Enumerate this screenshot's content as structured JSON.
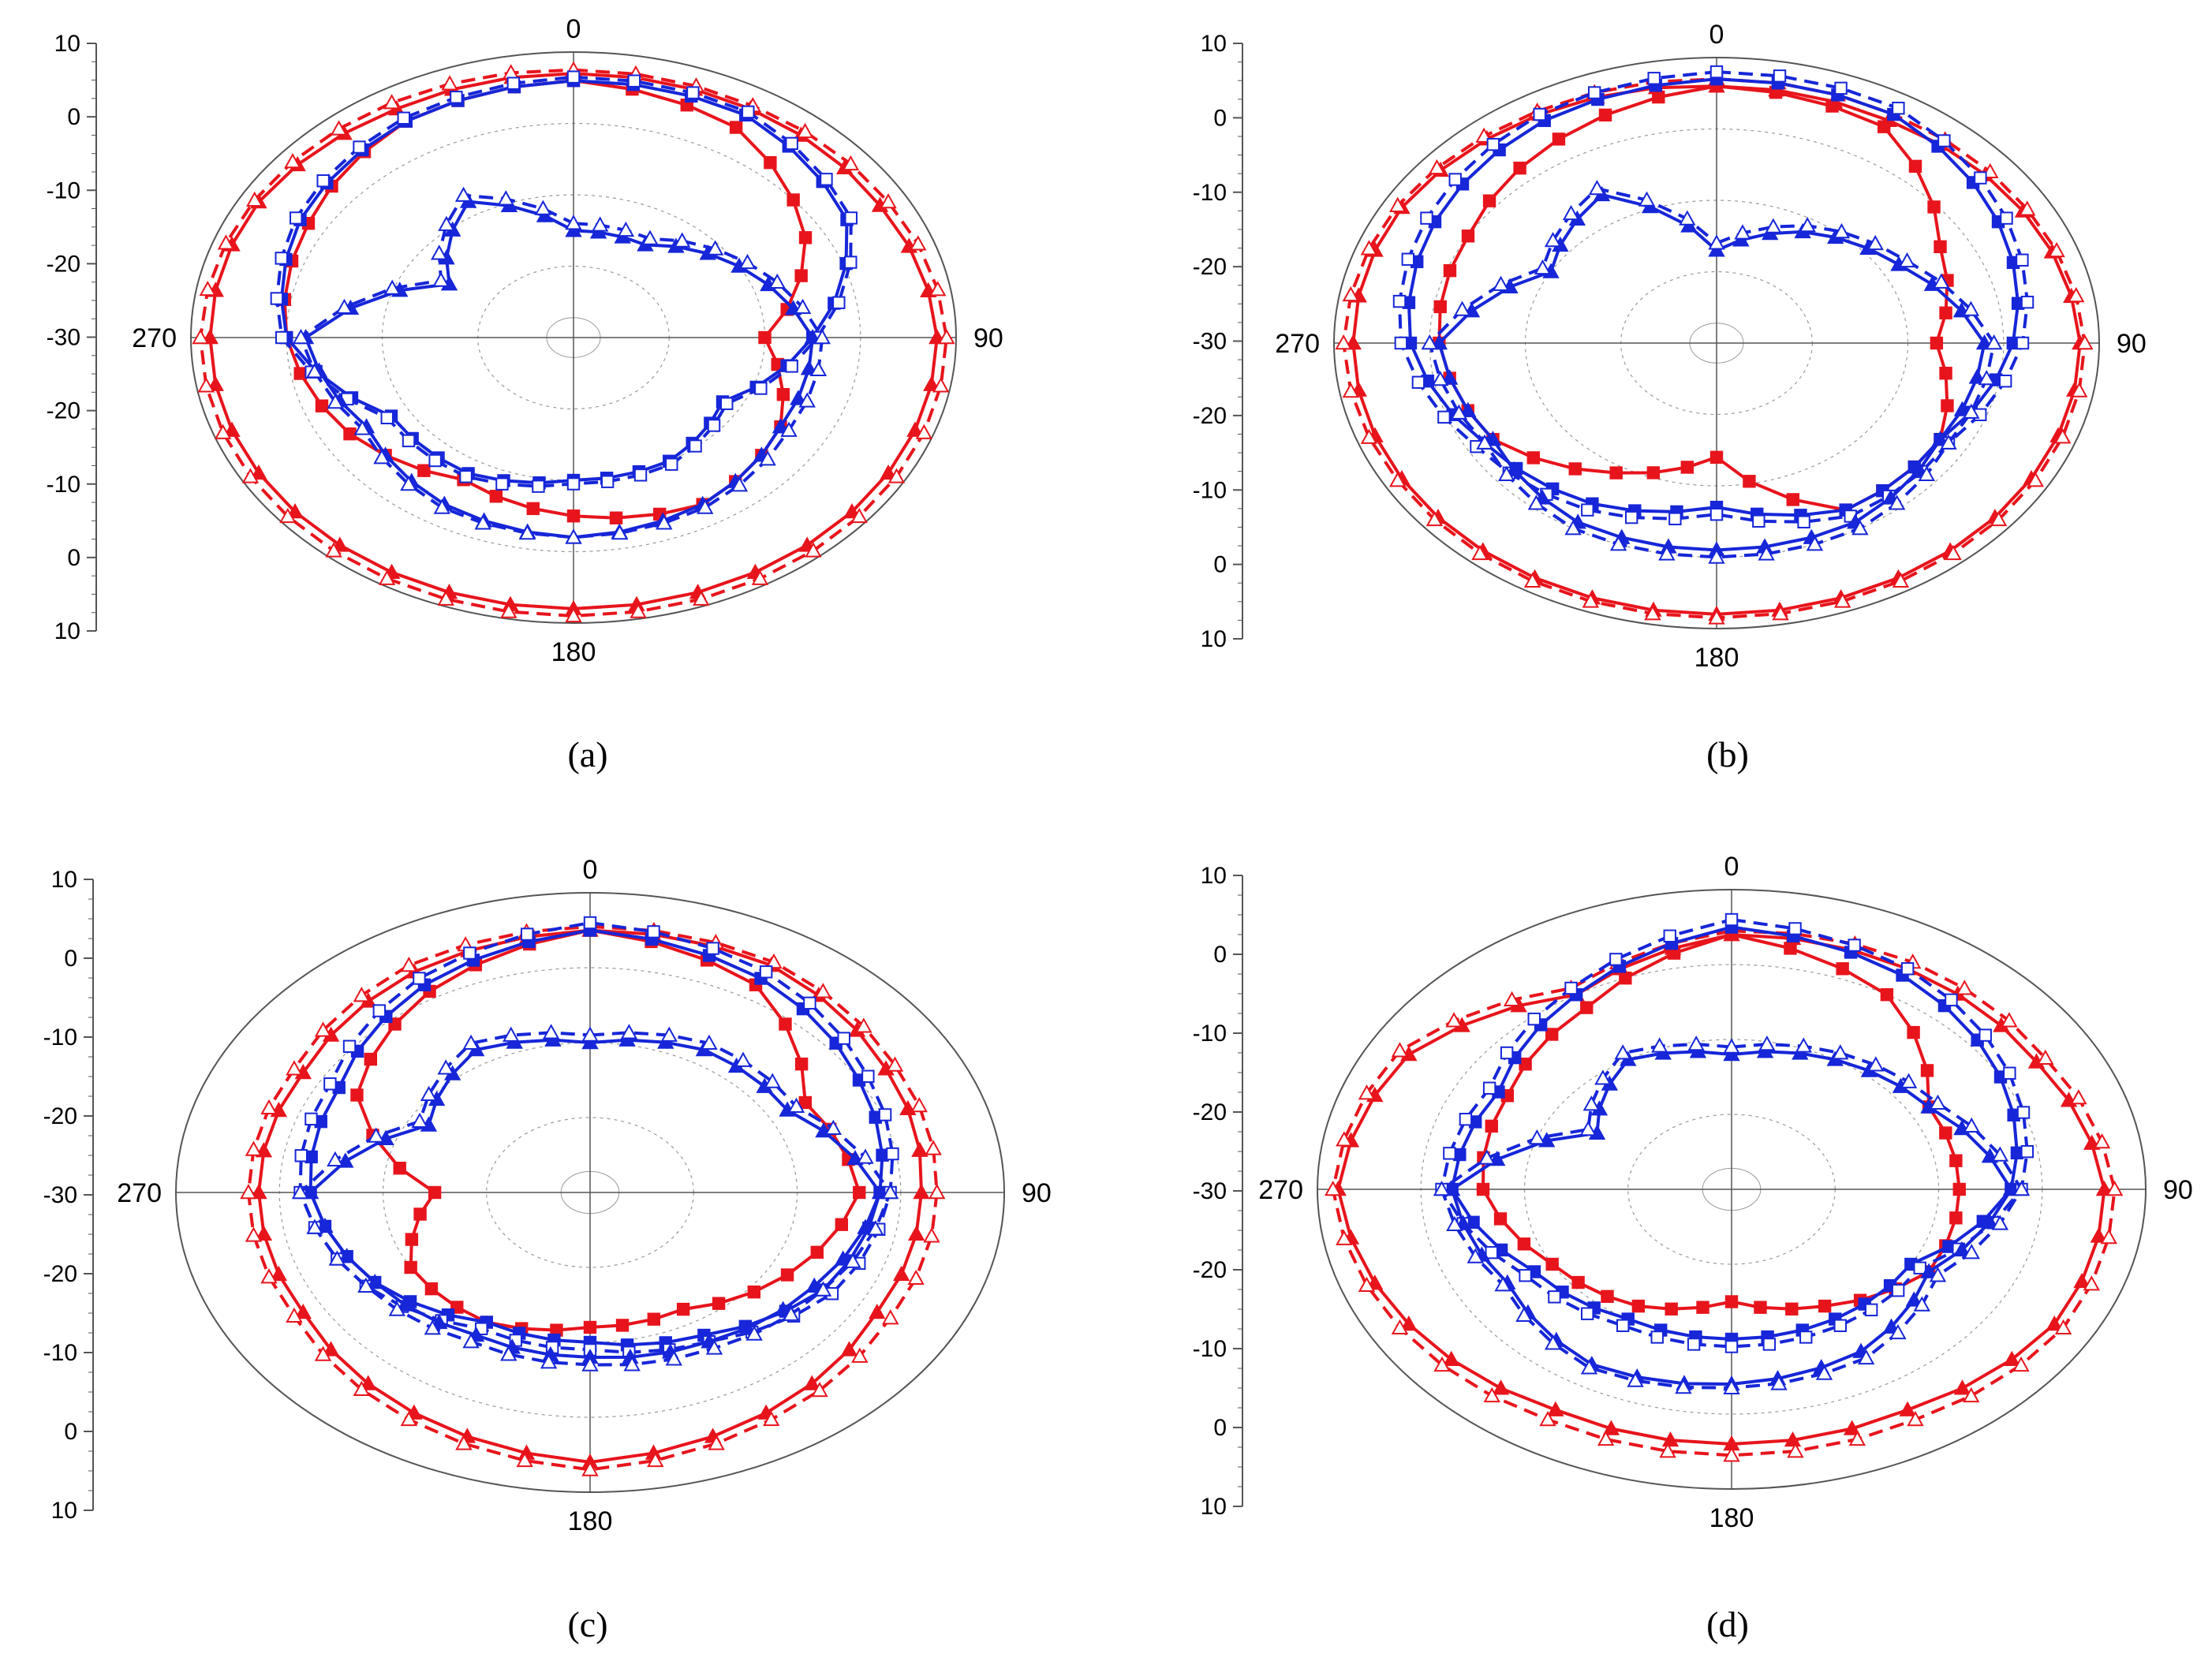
{
  "figure": {
    "captions": [
      "(a)",
      "(b)",
      "(c)",
      "(d)"
    ]
  },
  "colors": {
    "red": "#e8141c",
    "blue": "#1626d8",
    "grid": "#9a9a9a",
    "axis": "#555555"
  },
  "chart_data": [
    {
      "type": "polar-line",
      "caption": "(a)",
      "angle_labels": [
        "0",
        "90",
        "180",
        "270"
      ],
      "radial_tick_labels": [
        "10",
        "0",
        "-10",
        "-20",
        "-30",
        "-20",
        "-10",
        "0",
        "10"
      ],
      "radial_range": [
        -30,
        10
      ],
      "grid": true,
      "series": [
        {
          "color": "red",
          "style": "solid",
          "marker": "filled-triangle",
          "angles": [
            0,
            30,
            60,
            90,
            120,
            150,
            180,
            210,
            240,
            270,
            300,
            330
          ],
          "values": [
            7,
            7,
            7,
            8,
            8,
            8,
            8,
            8,
            8,
            8,
            8,
            7
          ]
        },
        {
          "color": "red",
          "style": "dashed",
          "marker": "open-triangle",
          "angles": [
            0,
            30,
            60,
            90,
            120,
            150,
            180,
            210,
            240,
            270,
            300,
            330
          ],
          "values": [
            7.5,
            7.5,
            8,
            9,
            9,
            9,
            9,
            9,
            9,
            9,
            8.5,
            8
          ]
        },
        {
          "color": "red",
          "style": "solid",
          "marker": "filled-square",
          "angles": [
            0,
            30,
            60,
            90,
            120,
            150,
            180,
            210,
            240,
            270,
            300,
            330
          ],
          "values": [
            6,
            4,
            -2,
            -10,
            -5,
            -3,
            -5,
            -7,
            -3,
            0,
            2,
            5
          ]
        },
        {
          "color": "blue",
          "style": "solid",
          "marker": "filled-square",
          "angles": [
            0,
            30,
            60,
            90,
            120,
            150,
            180,
            210,
            240,
            270,
            300,
            330
          ],
          "values": [
            6,
            6,
            3,
            -5,
            -12,
            -10,
            -10,
            -8,
            -8,
            0,
            3,
            5
          ]
        },
        {
          "color": "blue",
          "style": "dashed",
          "marker": "open-square",
          "angles": [
            0,
            30,
            60,
            90,
            120,
            150,
            180,
            210,
            240,
            270,
            300,
            330
          ],
          "values": [
            6.5,
            6.5,
            3.5,
            -4.5,
            -11.5,
            -9.5,
            -9.5,
            -7.5,
            -7.5,
            0.5,
            3.5,
            5.5
          ]
        },
        {
          "color": "blue",
          "style": "solid",
          "marker": "filled-triangle",
          "angles": [
            0,
            30,
            60,
            90,
            120,
            150,
            180,
            210,
            240,
            270,
            300,
            330
          ],
          "values": [
            -15,
            -15,
            -10,
            -5,
            -5,
            -3,
            -2,
            -3,
            -5,
            -2,
            -15,
            -8
          ]
        },
        {
          "color": "blue",
          "style": "dashed",
          "marker": "open-triangle",
          "angles": [
            0,
            30,
            60,
            90,
            120,
            150,
            180,
            210,
            240,
            270,
            300,
            330
          ],
          "values": [
            -14,
            -14,
            -9,
            -4,
            -4,
            -2.5,
            -2,
            -2.5,
            -4.5,
            -1.5,
            -14,
            -7
          ]
        }
      ]
    },
    {
      "type": "polar-line",
      "caption": "(b)",
      "angle_labels": [
        "0",
        "90",
        "180",
        "270"
      ],
      "radial_tick_labels": [
        "10",
        "0",
        "-10",
        "-20",
        "-30",
        "-20",
        "-10",
        "0",
        "10"
      ],
      "radial_range": [
        -30,
        10
      ],
      "grid": true,
      "series": [
        {
          "color": "red",
          "style": "solid",
          "marker": "filled-triangle",
          "angles": [
            0,
            30,
            60,
            90,
            120,
            150,
            180,
            210,
            240,
            270,
            300,
            330
          ],
          "values": [
            6,
            6,
            7,
            8,
            8,
            8,
            8,
            8,
            8,
            8,
            8,
            7
          ]
        },
        {
          "color": "red",
          "style": "dashed",
          "marker": "open-triangle",
          "angles": [
            0,
            30,
            60,
            90,
            120,
            150,
            180,
            210,
            240,
            270,
            300,
            330
          ],
          "values": [
            7,
            7,
            7.5,
            8.5,
            8.5,
            8.5,
            8.5,
            8.5,
            8.5,
            9,
            8.5,
            7.5
          ]
        },
        {
          "color": "red",
          "style": "solid",
          "marker": "filled-square",
          "angles": [
            0,
            30,
            60,
            90,
            120,
            150,
            180,
            210,
            240,
            270,
            300,
            330
          ],
          "values": [
            6,
            5,
            -3,
            -7,
            -3,
            -3,
            -14,
            -9,
            -3,
            -1,
            0,
            3
          ]
        },
        {
          "color": "blue",
          "style": "solid",
          "marker": "filled-square",
          "angles": [
            0,
            30,
            60,
            90,
            120,
            150,
            180,
            210,
            240,
            270,
            300,
            330
          ],
          "values": [
            7,
            7,
            4,
            1,
            -3,
            -3,
            -7,
            -4,
            -2,
            2,
            4,
            6
          ]
        },
        {
          "color": "blue",
          "style": "dashed",
          "marker": "open-square",
          "angles": [
            0,
            30,
            60,
            90,
            120,
            150,
            180,
            210,
            240,
            270,
            300,
            330
          ],
          "values": [
            8,
            8,
            5,
            2,
            -2,
            -2,
            -6,
            -3,
            -1,
            3,
            5,
            7
          ]
        },
        {
          "color": "blue",
          "style": "solid",
          "marker": "filled-triangle",
          "angles": [
            0,
            30,
            60,
            90,
            120,
            150,
            180,
            210,
            240,
            270,
            300,
            330
          ],
          "values": [
            -17,
            -12,
            -8,
            -2,
            -3,
            -1,
            -1,
            -1,
            -3,
            -1,
            -10,
            -6
          ]
        },
        {
          "color": "blue",
          "style": "dashed",
          "marker": "open-triangle",
          "angles": [
            0,
            30,
            60,
            90,
            120,
            150,
            180,
            210,
            240,
            270,
            300,
            330
          ],
          "values": [
            -16,
            -11,
            -7,
            -1,
            -2,
            0,
            0,
            0,
            -2,
            0,
            -9,
            -5
          ]
        }
      ]
    },
    {
      "type": "polar-line",
      "caption": "(c)",
      "angle_labels": [
        "0",
        "90",
        "180",
        "270"
      ],
      "radial_tick_labels": [
        "10",
        "0",
        "-10",
        "-20",
        "-30",
        "-20",
        "-10",
        "0",
        "10"
      ],
      "radial_range": [
        -30,
        10
      ],
      "grid": true,
      "series": [
        {
          "color": "red",
          "style": "solid",
          "marker": "filled-triangle",
          "angles": [
            0,
            30,
            60,
            90,
            120,
            150,
            180,
            210,
            240,
            270,
            300,
            330
          ],
          "values": [
            5,
            5,
            3,
            2,
            2,
            4,
            6,
            4,
            2,
            2,
            2,
            4
          ]
        },
        {
          "color": "red",
          "style": "dashed",
          "marker": "open-triangle",
          "angles": [
            0,
            30,
            60,
            90,
            120,
            150,
            180,
            210,
            240,
            270,
            300,
            330
          ],
          "values": [
            5.5,
            5.5,
            4,
            3.5,
            3.5,
            5,
            7,
            5,
            3,
            3,
            3,
            5
          ]
        },
        {
          "color": "red",
          "style": "solid",
          "marker": "filled-square",
          "angles": [
            0,
            30,
            60,
            90,
            120,
            150,
            180,
            210,
            240,
            270,
            300,
            330
          ],
          "values": [
            5,
            2,
            -6,
            -4,
            -8,
            -12,
            -12,
            -10,
            -10,
            -15,
            -4,
            1
          ]
        },
        {
          "color": "blue",
          "style": "solid",
          "marker": "filled-square",
          "angles": [
            0,
            30,
            60,
            90,
            120,
            150,
            180,
            210,
            240,
            270,
            300,
            330
          ],
          "values": [
            5,
            3,
            0,
            -2,
            -4,
            -8,
            -10,
            -10,
            -6,
            -3,
            -2,
            2
          ]
        },
        {
          "color": "blue",
          "style": "dashed",
          "marker": "open-square",
          "angles": [
            0,
            30,
            60,
            90,
            120,
            150,
            180,
            210,
            240,
            270,
            300,
            330
          ],
          "values": [
            6,
            4,
            1,
            -1,
            -3,
            -7,
            -9,
            -9,
            -5,
            -2,
            -1,
            3
          ]
        },
        {
          "color": "blue",
          "style": "solid",
          "marker": "filled-triangle",
          "angles": [
            0,
            30,
            60,
            90,
            120,
            150,
            180,
            210,
            240,
            270,
            300,
            330
          ],
          "values": [
            -10,
            -8,
            -8,
            -2,
            -5,
            -7,
            -8,
            -8,
            -6,
            -3,
            -12,
            -8
          ]
        },
        {
          "color": "blue",
          "style": "dashed",
          "marker": "open-triangle",
          "angles": [
            0,
            30,
            60,
            90,
            120,
            150,
            180,
            210,
            240,
            270,
            300,
            330
          ],
          "values": [
            -9,
            -7,
            -7,
            -1,
            -4,
            -6,
            -7,
            -7,
            -5,
            -2,
            -11,
            -7
          ]
        }
      ]
    },
    {
      "type": "polar-line",
      "caption": "(d)",
      "angle_labels": [
        "0",
        "90",
        "180",
        "270"
      ],
      "radial_tick_labels": [
        "10",
        "0",
        "-10",
        "-20",
        "-30",
        "-20",
        "-10",
        "0",
        "10"
      ],
      "radial_range": [
        -30,
        10
      ],
      "grid": true,
      "series": [
        {
          "color": "red",
          "style": "solid",
          "marker": "filled-triangle",
          "angles": [
            0,
            30,
            60,
            90,
            120,
            150,
            180,
            210,
            240,
            270,
            300,
            330
          ],
          "values": [
            4,
            4,
            4,
            6,
            6,
            4,
            4,
            4,
            6,
            8,
            6,
            0
          ]
        },
        {
          "color": "red",
          "style": "dashed",
          "marker": "open-triangle",
          "angles": [
            0,
            30,
            60,
            90,
            120,
            150,
            180,
            210,
            240,
            270,
            300,
            330
          ],
          "values": [
            4.5,
            5,
            5,
            7,
            7,
            5.5,
            5.5,
            5.5,
            7,
            8.5,
            7,
            1
          ]
        },
        {
          "color": "red",
          "style": "solid",
          "marker": "filled-square",
          "angles": [
            0,
            30,
            60,
            90,
            120,
            150,
            180,
            210,
            240,
            270,
            300,
            330
          ],
          "values": [
            4,
            0,
            -8,
            -8,
            -8,
            -12,
            -15,
            -12,
            -10,
            -6,
            -5,
            -2
          ]
        },
        {
          "color": "blue",
          "style": "solid",
          "marker": "filled-square",
          "angles": [
            0,
            30,
            60,
            90,
            120,
            150,
            180,
            210,
            240,
            270,
            300,
            330
          ],
          "values": [
            5,
            3,
            0,
            -3,
            -10,
            -10,
            -10,
            -10,
            -8,
            -3,
            -4,
            0
          ]
        },
        {
          "color": "blue",
          "style": "dashed",
          "marker": "open-square",
          "angles": [
            0,
            30,
            60,
            90,
            120,
            150,
            180,
            210,
            240,
            270,
            300,
            330
          ],
          "values": [
            6,
            4,
            1,
            -2,
            -9,
            -9,
            -9,
            -9,
            -7,
            -2,
            -3,
            1
          ]
        },
        {
          "color": "blue",
          "style": "solid",
          "marker": "filled-triangle",
          "angles": [
            0,
            30,
            60,
            90,
            120,
            150,
            180,
            210,
            240,
            270,
            300,
            330
          ],
          "values": [
            -12,
            -10,
            -8,
            -3,
            -8,
            -5,
            -4,
            -3,
            -5,
            -3,
            -15,
            -10
          ]
        },
        {
          "color": "blue",
          "style": "dashed",
          "marker": "open-triangle",
          "angles": [
            0,
            30,
            60,
            90,
            120,
            150,
            180,
            210,
            240,
            270,
            300,
            330
          ],
          "values": [
            -11,
            -9,
            -7,
            -2,
            -7,
            -4,
            -3.5,
            -2.5,
            -4.5,
            -2,
            -14,
            -9
          ]
        }
      ]
    }
  ]
}
